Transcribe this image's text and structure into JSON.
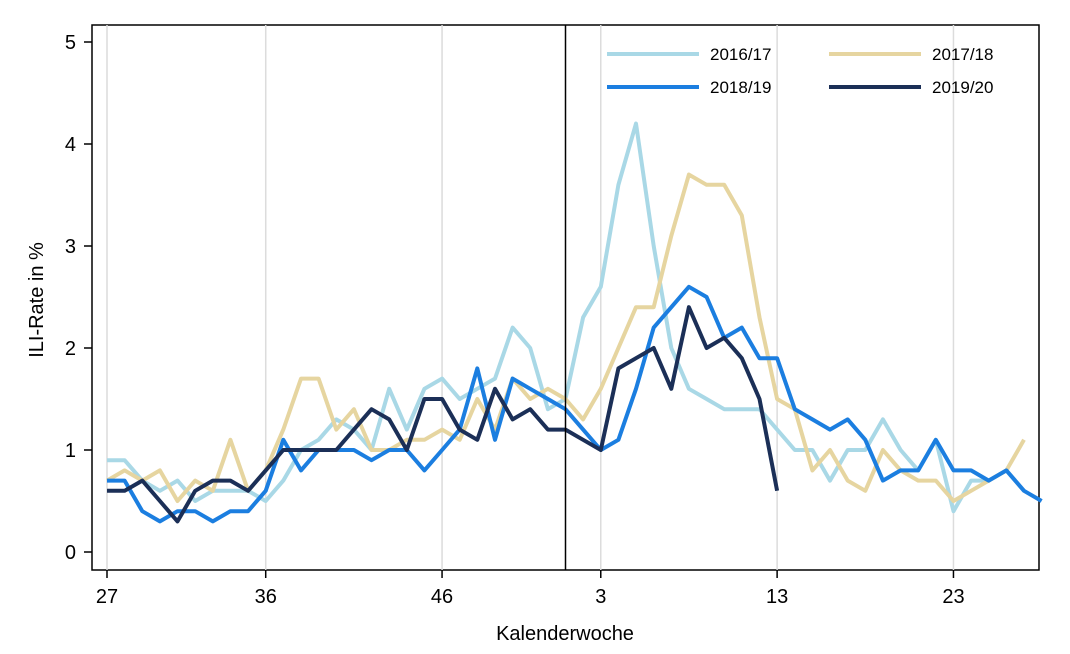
{
  "chart_data": {
    "type": "line",
    "xlabel": "Kalenderwoche",
    "ylabel": "ILI-Rate in %",
    "ylim": [
      0,
      5
    ],
    "y_ticks": [
      0,
      1,
      2,
      3,
      4,
      5
    ],
    "x_ticks": [
      {
        "index": 0,
        "label": "27"
      },
      {
        "index": 9,
        "label": "36"
      },
      {
        "index": 19,
        "label": "46"
      },
      {
        "index": 28,
        "label": "3"
      },
      {
        "index": 38,
        "label": "13"
      },
      {
        "index": 48,
        "label": "23"
      }
    ],
    "x_range": [
      0,
      52
    ],
    "year_boundary_index": 26,
    "grid": "vertical",
    "legend_position": "top-right",
    "series": [
      {
        "name": "2016/17",
        "color": "#a9d8e6",
        "values": [
          0.9,
          0.9,
          0.7,
          0.6,
          0.7,
          0.5,
          0.6,
          0.6,
          0.6,
          0.5,
          0.7,
          1.0,
          1.1,
          1.3,
          1.2,
          1.0,
          1.6,
          1.2,
          1.6,
          1.7,
          1.5,
          1.6,
          1.7,
          2.2,
          2.0,
          1.4,
          1.5,
          2.3,
          2.6,
          3.6,
          4.2,
          3.0,
          2.0,
          1.6,
          1.5,
          1.4,
          1.4,
          1.4,
          1.2,
          1.0,
          1.0,
          0.7,
          1.0,
          1.0,
          1.3,
          1.0,
          0.8,
          1.1,
          0.4,
          0.7,
          0.7,
          0.8,
          0.6
        ]
      },
      {
        "name": "2017/18",
        "color": "#e6d5a0",
        "values": [
          0.7,
          0.8,
          0.7,
          0.8,
          0.5,
          0.7,
          0.6,
          1.1,
          0.6,
          0.8,
          1.2,
          1.7,
          1.7,
          1.2,
          1.4,
          1.0,
          1.0,
          1.1,
          1.1,
          1.2,
          1.1,
          1.5,
          1.2,
          1.7,
          1.5,
          1.6,
          1.5,
          1.3,
          1.6,
          2.0,
          2.4,
          2.4,
          3.1,
          3.7,
          3.6,
          3.6,
          3.3,
          2.3,
          1.5,
          1.4,
          0.8,
          1.0,
          0.7,
          0.6,
          1.0,
          0.8,
          0.7,
          0.7,
          0.5,
          0.6,
          0.7,
          0.8,
          1.1
        ]
      },
      {
        "name": "2018/19",
        "color": "#1b7ee0",
        "values": [
          0.7,
          0.7,
          0.4,
          0.3,
          0.4,
          0.4,
          0.3,
          0.4,
          0.4,
          0.6,
          1.1,
          0.8,
          1.0,
          1.0,
          1.0,
          0.9,
          1.0,
          1.0,
          0.8,
          1.0,
          1.2,
          1.8,
          1.1,
          1.7,
          1.6,
          1.5,
          1.4,
          1.2,
          1.0,
          1.1,
          1.6,
          2.2,
          2.4,
          2.6,
          2.5,
          2.1,
          2.2,
          1.9,
          1.9,
          1.4,
          1.3,
          1.2,
          1.3,
          1.1,
          0.7,
          0.8,
          0.8,
          1.1,
          0.8,
          0.8,
          0.7,
          0.8,
          0.6,
          0.5
        ]
      },
      {
        "name": "2019/20",
        "color": "#1b2f57",
        "values": [
          0.6,
          0.6,
          0.7,
          0.5,
          0.3,
          0.6,
          0.7,
          0.7,
          0.6,
          0.8,
          1.0,
          1.0,
          1.0,
          1.0,
          1.2,
          1.4,
          1.3,
          1.0,
          1.5,
          1.5,
          1.2,
          1.1,
          1.6,
          1.3,
          1.4,
          1.2,
          1.2,
          1.1,
          1.0,
          1.8,
          1.9,
          2.0,
          1.6,
          2.4,
          2.0,
          2.1,
          1.9,
          1.5,
          0.6
        ]
      }
    ]
  }
}
